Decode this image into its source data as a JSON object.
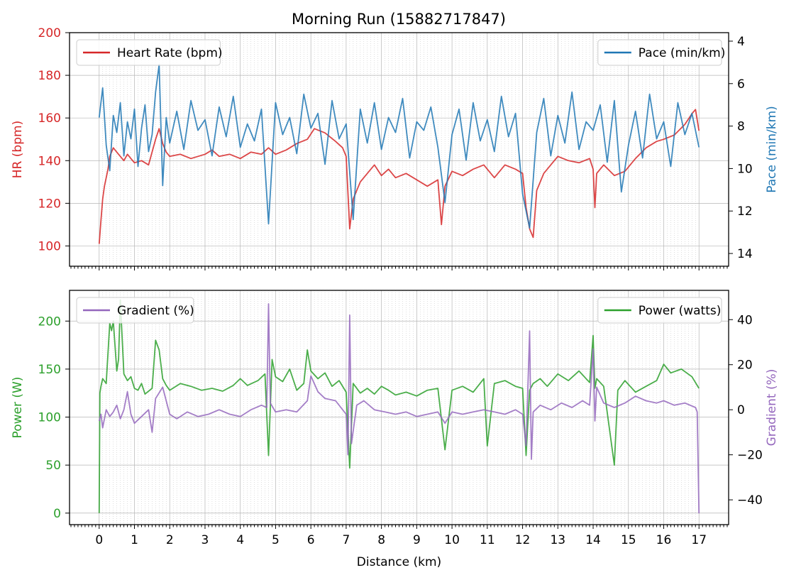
{
  "title": "Morning Run (15882717847)",
  "colors": {
    "heart_rate": "#d62728",
    "pace": "#1f77b4",
    "power": "#2ca02c",
    "gradient": "#9467bd",
    "text": "#000000"
  },
  "chart_data": [
    {
      "type": "line",
      "panel": "top",
      "xlabel": "",
      "ylabel": "HR (bpm)",
      "ylabel_right": "Pace (min/km)",
      "xlim": [
        -0.84,
        17.84
      ],
      "ylim": [
        90.5,
        200
      ],
      "ylim_right": [
        14.6,
        3.6
      ],
      "yticks": [
        100,
        120,
        140,
        160,
        180,
        200
      ],
      "yticks_right": [
        4,
        6,
        8,
        10,
        12,
        14
      ],
      "grid": true,
      "series": [
        {
          "name": "Heart Rate (bpm)",
          "axis": "left",
          "legend": "top-left",
          "x": [
            0,
            0.05,
            0.1,
            0.15,
            0.2,
            0.25,
            0.3,
            0.4,
            0.5,
            0.6,
            0.7,
            0.8,
            0.9,
            1.0,
            1.2,
            1.4,
            1.6,
            1.7,
            1.8,
            1.9,
            2.0,
            2.3,
            2.6,
            3.0,
            3.2,
            3.4,
            3.7,
            4.0,
            4.3,
            4.6,
            4.8,
            5.0,
            5.3,
            5.6,
            5.9,
            6.1,
            6.4,
            6.7,
            6.9,
            7.0,
            7.1,
            7.2,
            7.4,
            7.6,
            7.8,
            8.0,
            8.2,
            8.4,
            8.7,
            9.0,
            9.3,
            9.6,
            9.7,
            9.8,
            10.0,
            10.3,
            10.6,
            10.9,
            11.2,
            11.5,
            11.8,
            12.0,
            12.1,
            12.2,
            12.3,
            12.4,
            12.6,
            12.8,
            13.0,
            13.3,
            13.6,
            13.9,
            14.0,
            14.05,
            14.1,
            14.3,
            14.6,
            14.9,
            15.2,
            15.5,
            15.8,
            16.0,
            16.3,
            16.6,
            16.8,
            16.9,
            17.0
          ],
          "values": [
            101,
            112,
            122,
            128,
            132,
            136,
            142,
            146,
            144,
            142,
            140,
            143,
            141,
            139,
            140,
            138,
            150,
            155,
            148,
            144,
            142,
            143,
            141,
            143,
            145,
            142,
            143,
            141,
            144,
            143,
            146,
            143,
            145,
            148,
            150,
            155,
            153,
            149,
            146,
            142,
            108,
            122,
            130,
            134,
            138,
            133,
            136,
            132,
            134,
            131,
            128,
            131,
            110,
            128,
            135,
            133,
            136,
            138,
            132,
            138,
            136,
            134,
            118,
            108,
            104,
            126,
            134,
            138,
            142,
            140,
            139,
            141,
            136,
            118,
            134,
            138,
            133,
            135,
            141,
            146,
            149,
            150,
            152,
            157,
            162,
            164,
            154
          ]
        },
        {
          "name": "Pace (min/km)",
          "axis": "right",
          "legend": "top-right",
          "x": [
            0,
            0.1,
            0.2,
            0.3,
            0.4,
            0.5,
            0.6,
            0.7,
            0.8,
            0.9,
            1.0,
            1.1,
            1.2,
            1.3,
            1.4,
            1.5,
            1.6,
            1.7,
            1.8,
            1.9,
            2.0,
            2.2,
            2.4,
            2.6,
            2.8,
            3.0,
            3.2,
            3.4,
            3.6,
            3.8,
            4.0,
            4.2,
            4.4,
            4.6,
            4.8,
            5.0,
            5.2,
            5.4,
            5.6,
            5.8,
            6.0,
            6.2,
            6.4,
            6.6,
            6.8,
            7.0,
            7.2,
            7.4,
            7.6,
            7.8,
            8.0,
            8.2,
            8.4,
            8.6,
            8.8,
            9.0,
            9.2,
            9.4,
            9.6,
            9.8,
            10.0,
            10.2,
            10.4,
            10.6,
            10.8,
            11.0,
            11.2,
            11.4,
            11.6,
            11.8,
            12.0,
            12.2,
            12.4,
            12.6,
            12.8,
            13.0,
            13.2,
            13.4,
            13.6,
            13.8,
            14.0,
            14.2,
            14.4,
            14.6,
            14.8,
            15.0,
            15.2,
            15.4,
            15.6,
            15.8,
            16.0,
            16.2,
            16.4,
            16.6,
            16.8,
            17.0
          ],
          "values": [
            7.6,
            6.2,
            8.9,
            10.1,
            7.5,
            8.3,
            6.9,
            9.4,
            7.8,
            8.6,
            7.2,
            9.9,
            8.1,
            7.0,
            9.2,
            8.4,
            6.4,
            5.1,
            10.8,
            7.6,
            8.8,
            7.3,
            9.1,
            6.8,
            8.2,
            7.7,
            9.4,
            7.1,
            8.5,
            6.6,
            9.0,
            7.9,
            8.7,
            7.2,
            12.6,
            6.9,
            8.4,
            7.6,
            9.3,
            6.5,
            8.1,
            7.4,
            9.8,
            6.8,
            8.6,
            7.9,
            12.4,
            7.2,
            8.8,
            6.9,
            9.1,
            7.6,
            8.3,
            6.7,
            9.5,
            7.8,
            8.2,
            7.1,
            9.0,
            11.6,
            8.4,
            7.2,
            9.6,
            6.9,
            8.7,
            7.7,
            9.2,
            6.6,
            8.5,
            7.4,
            11.2,
            12.8,
            8.3,
            6.7,
            9.4,
            7.5,
            8.8,
            6.4,
            9.1,
            7.8,
            8.2,
            7.0,
            9.7,
            6.8,
            11.1,
            8.9,
            7.3,
            9.5,
            6.5,
            8.6,
            7.8,
            9.9,
            6.9,
            8.4,
            7.4,
            9.0
          ]
        }
      ]
    },
    {
      "type": "line",
      "panel": "bottom",
      "xlabel": "Distance (km)",
      "ylabel": "Power (W)",
      "ylabel_right": "Gradient (%)",
      "xlim": [
        -0.84,
        17.84
      ],
      "xticks": [
        0,
        1,
        2,
        3,
        4,
        5,
        6,
        7,
        8,
        9,
        10,
        11,
        12,
        13,
        14,
        15,
        16,
        17
      ],
      "ylim": [
        -12,
        232
      ],
      "ylim_right": [
        -51,
        53
      ],
      "yticks": [
        0,
        50,
        100,
        150,
        200
      ],
      "yticks_right": [
        -40,
        -20,
        0,
        20,
        40
      ],
      "grid": true,
      "series": [
        {
          "name": "Power (watts)",
          "axis": "left",
          "legend": "top-right",
          "x": [
            0,
            0.02,
            0.05,
            0.1,
            0.2,
            0.3,
            0.35,
            0.4,
            0.5,
            0.55,
            0.6,
            0.7,
            0.8,
            0.9,
            1.0,
            1.1,
            1.2,
            1.3,
            1.5,
            1.6,
            1.7,
            1.8,
            1.9,
            2.0,
            2.3,
            2.6,
            2.9,
            3.2,
            3.5,
            3.8,
            4.0,
            4.2,
            4.5,
            4.7,
            4.8,
            4.9,
            5.0,
            5.2,
            5.4,
            5.6,
            5.8,
            5.9,
            6.0,
            6.2,
            6.4,
            6.6,
            6.8,
            7.0,
            7.1,
            7.2,
            7.4,
            7.6,
            7.8,
            8.0,
            8.2,
            8.4,
            8.7,
            9.0,
            9.3,
            9.6,
            9.8,
            10.0,
            10.3,
            10.6,
            10.9,
            11.0,
            11.2,
            11.5,
            11.8,
            12.0,
            12.1,
            12.2,
            12.3,
            12.5,
            12.7,
            13.0,
            13.3,
            13.6,
            13.9,
            14.0,
            14.05,
            14.1,
            14.3,
            14.6,
            14.7,
            14.9,
            15.2,
            15.5,
            15.8,
            16.0,
            16.2,
            16.5,
            16.8,
            17.0
          ],
          "values": [
            0,
            125,
            132,
            140,
            135,
            198,
            190,
            200,
            148,
            160,
            222,
            145,
            138,
            142,
            130,
            128,
            135,
            124,
            130,
            180,
            170,
            140,
            133,
            128,
            135,
            132,
            128,
            130,
            127,
            133,
            140,
            133,
            138,
            145,
            60,
            160,
            142,
            137,
            150,
            128,
            135,
            170,
            148,
            140,
            146,
            132,
            138,
            126,
            47,
            135,
            125,
            130,
            124,
            132,
            128,
            123,
            126,
            122,
            128,
            130,
            66,
            128,
            132,
            126,
            140,
            70,
            135,
            138,
            132,
            130,
            60,
            128,
            135,
            140,
            132,
            145,
            138,
            148,
            136,
            185,
            130,
            140,
            132,
            50,
            128,
            138,
            126,
            132,
            138,
            155,
            146,
            150,
            142,
            130
          ]
        },
        {
          "name": "Gradient (%)",
          "axis": "right",
          "legend": "top-left",
          "x": [
            0,
            0.05,
            0.1,
            0.2,
            0.3,
            0.4,
            0.5,
            0.6,
            0.7,
            0.8,
            0.9,
            1.0,
            1.2,
            1.4,
            1.5,
            1.6,
            1.8,
            2.0,
            2.2,
            2.5,
            2.8,
            3.1,
            3.4,
            3.7,
            4.0,
            4.3,
            4.6,
            4.75,
            4.8,
            4.85,
            5.0,
            5.3,
            5.6,
            5.9,
            6.0,
            6.2,
            6.4,
            6.7,
            7.0,
            7.05,
            7.1,
            7.15,
            7.3,
            7.5,
            7.8,
            8.1,
            8.4,
            8.7,
            9.0,
            9.3,
            9.6,
            9.8,
            10.0,
            10.3,
            10.6,
            10.9,
            11.2,
            11.5,
            11.8,
            12.0,
            12.1,
            12.2,
            12.25,
            12.3,
            12.5,
            12.8,
            13.1,
            13.4,
            13.7,
            13.9,
            14.0,
            14.05,
            14.1,
            14.3,
            14.6,
            14.9,
            15.2,
            15.5,
            15.8,
            16.0,
            16.3,
            16.6,
            16.9,
            16.95,
            17.0
          ],
          "values": [
            -5,
            -2,
            -8,
            0,
            -3,
            -1,
            2,
            -4,
            0,
            8,
            -2,
            -6,
            -3,
            0,
            -10,
            5,
            10,
            -2,
            -4,
            -1,
            -3,
            -2,
            0,
            -2,
            -3,
            0,
            2,
            1,
            47,
            3,
            -1,
            0,
            -1,
            4,
            15,
            8,
            5,
            4,
            -2,
            -20,
            42,
            -15,
            2,
            4,
            0,
            -1,
            -2,
            -1,
            -3,
            -2,
            -1,
            -6,
            -1,
            -2,
            -1,
            0,
            -1,
            -2,
            0,
            -2,
            -16,
            35,
            -22,
            -1,
            2,
            0,
            3,
            1,
            4,
            2,
            27,
            -5,
            10,
            3,
            1,
            3,
            6,
            4,
            3,
            4,
            2,
            3,
            1,
            -1,
            -46
          ]
        }
      ]
    }
  ]
}
